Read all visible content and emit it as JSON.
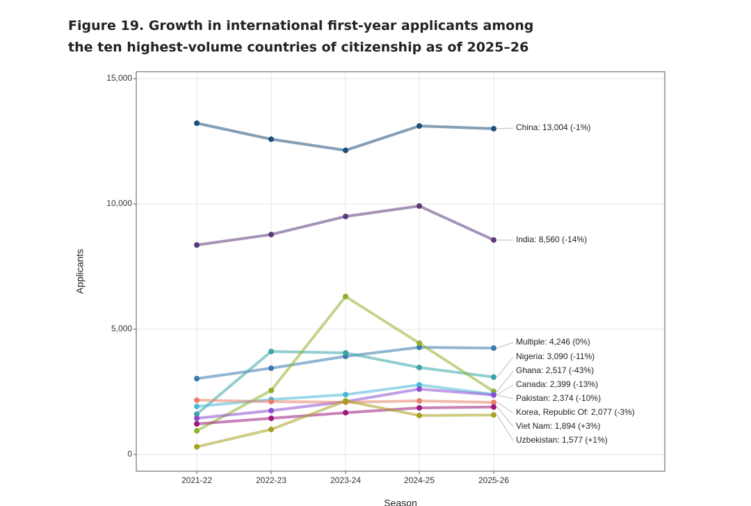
{
  "chart_data": {
    "type": "line",
    "title": "Figure 19. Growth in international first-year applicants among the ten highest-volume countries of citizenship as of 2025–26",
    "x_label": "Season",
    "y_label": "Applicants",
    "categories": [
      "2021-22",
      "2022-23",
      "2023-24",
      "2024-25",
      "2025-26"
    ],
    "ylim": [
      -667,
      15278
    ],
    "yticks": [
      0,
      {
        "value": 5000,
        "label": "5,000"
      },
      {
        "value": 10000,
        "label": "10,000"
      },
      {
        "value": 15000,
        "label": "15,000"
      }
    ],
    "grid": true,
    "series": [
      {
        "name": "China: 13,004 (-1%)",
        "color": "#1f4e79",
        "values": [
          13222,
          12583,
          12139,
          13111,
          13004
        ]
      },
      {
        "name": "India: 8,560 (-14%)",
        "color": "#5b3a7a",
        "values": [
          8361,
          8778,
          9500,
          9917,
          8560
        ]
      },
      {
        "name": "Multiple: 4,246 (0%)",
        "color": "#3a78ad",
        "values": [
          3028,
          3444,
          3917,
          4278,
          4246
        ]
      },
      {
        "name": "Nigeria: 3,090 (-11%)",
        "color": "#3aa6a6",
        "values": [
          1611,
          4111,
          4056,
          3472,
          3090
        ]
      },
      {
        "name": "Ghana: 2,517 (-43%)",
        "color": "#8fb02a",
        "values": [
          944,
          2556,
          6306,
          4444,
          2517
        ]
      },
      {
        "name": "Canada: 2,399 (-13%)",
        "color": "#4ab8d8",
        "values": [
          1917,
          2194,
          2389,
          2778,
          2399
        ]
      },
      {
        "name": "Pakistan: 2,374 (-10%)",
        "color": "#8a4fd0",
        "values": [
          1444,
          1750,
          2111,
          2611,
          2374
        ]
      },
      {
        "name": "Korea, Republic Of: 2,077 (-3%)",
        "color": "#e8806a",
        "values": [
          2167,
          2111,
          2083,
          2139,
          2077
        ]
      },
      {
        "name": "Viet Nam: 1,894 (+3%)",
        "color": "#9b1a7a",
        "values": [
          1222,
          1444,
          1667,
          1861,
          1894
        ]
      },
      {
        "name": "Uzbekistan: 1,577 (+1%)",
        "color": "#a8a020",
        "values": [
          306,
          1000,
          2139,
          1556,
          1577
        ]
      }
    ]
  }
}
